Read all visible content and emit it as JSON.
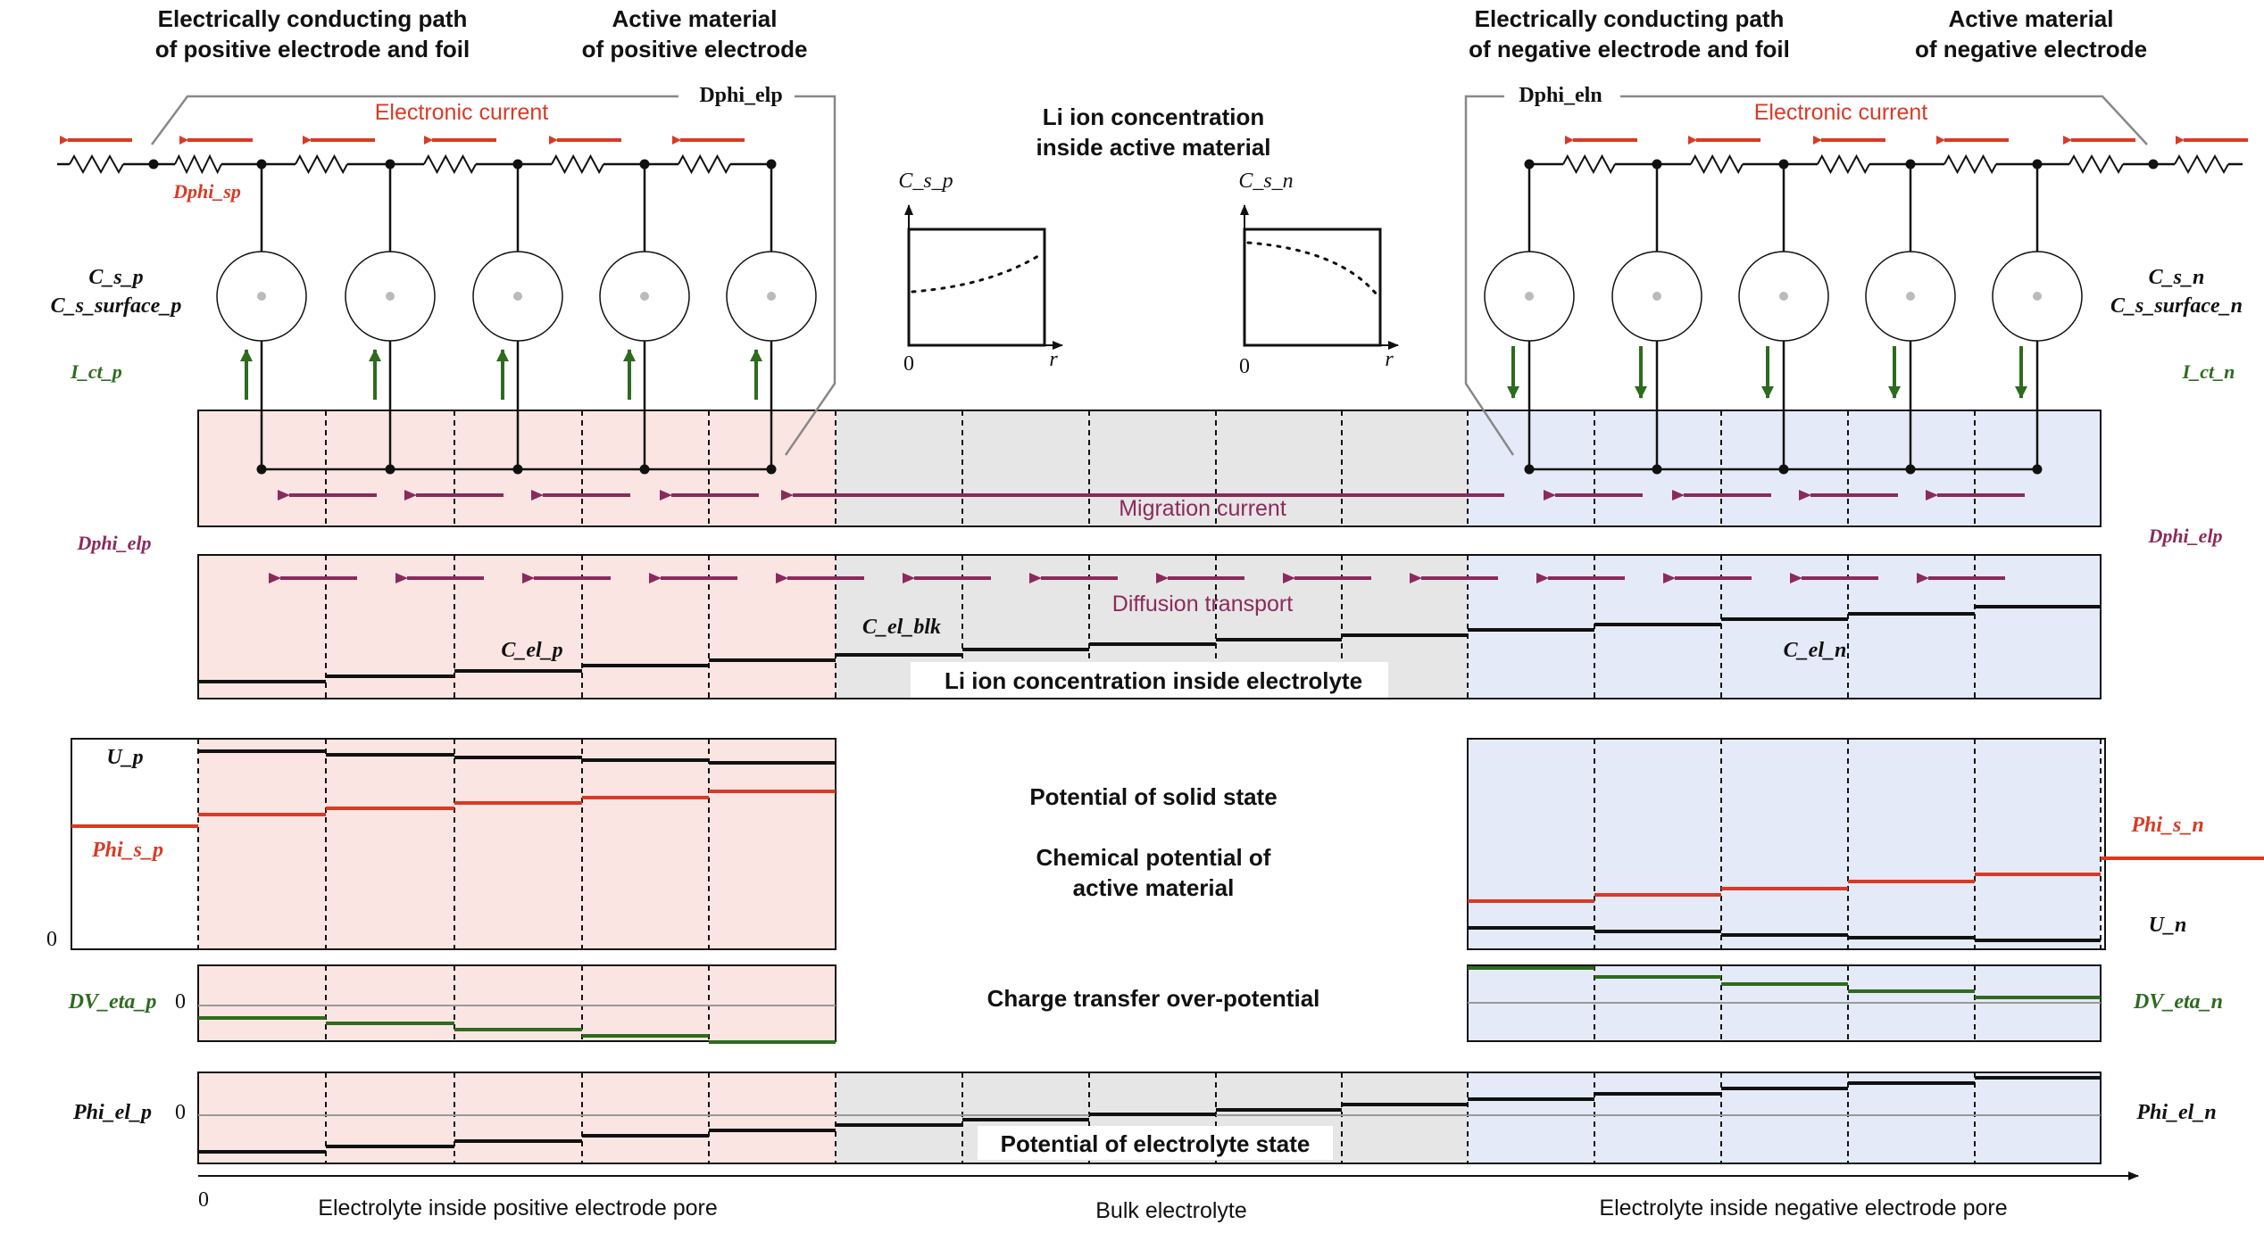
{
  "headers": {
    "pos_path": [
      "Electrically conducting path",
      "of positive electrode and foil"
    ],
    "pos_active": [
      "Active material",
      "of positive electrode"
    ],
    "neg_path": [
      "Electrically conducting path",
      "of negative electrode and foil"
    ],
    "neg_active": [
      "Active material",
      "of negative electrode"
    ]
  },
  "labels": {
    "electronic_current": "Electronic current",
    "dphi_elp_top": "Dphi_elp",
    "dphi_eln_top": "Dphi_eln",
    "dphi_sp": "Dphi_sp",
    "cs_p": "C_s_p",
    "cs_surface_p": "C_s_surface_p",
    "cs_n": "C_s_n",
    "cs_surface_n": "C_s_surface_n",
    "ict_p": "I_ct_p",
    "ict_n": "I_ct_n",
    "li_conc_active": [
      "Li ion concentration",
      "inside active material"
    ],
    "inset_p_title": "C_s_p",
    "inset_n_title": "C_s_n",
    "inset_zero": "0",
    "inset_r": "r",
    "migration_current": "Migration current",
    "dphi_elp_left": "Dphi_elp",
    "dphi_elp_right": "Dphi_elp",
    "diffusion_transport": "Diffusion transport",
    "c_el_p": "C_el_p",
    "c_el_blk": "C_el_blk",
    "c_el_n": "C_el_n",
    "li_conc_electrolyte": "Li ion concentration inside electrolyte",
    "u_p": "U_p",
    "phi_s_p": "Phi_s_p",
    "zero": "0",
    "potential_solid": "Potential of solid state",
    "chem_potential": [
      "Chemical potential of",
      "active material"
    ],
    "phi_s_n": "Phi_s_n",
    "u_n": "U_n",
    "dv_eta_p": "DV_eta_p",
    "dv_eta_n": "DV_eta_n",
    "charge_transfer": "Charge transfer over-potential",
    "phi_el_p": "Phi_el_p",
    "phi_el_n": "Phi_el_n",
    "potential_electrolyte": "Potential of electrolyte state",
    "axis_zero": "0",
    "region_pos": "Electrolyte inside positive electrode pore",
    "region_bulk": "Bulk electrolyte",
    "region_neg": "Electrolyte inside negative electrode pore"
  },
  "colors": {
    "pos_fill": "#fbe5e2",
    "bulk_fill": "#e6e6e6",
    "neg_fill": "#e5eaf9",
    "red": "#d93a25",
    "green": "#2e6b1e",
    "purple": "#8b2a5c",
    "gray_line": "#999999"
  }
}
